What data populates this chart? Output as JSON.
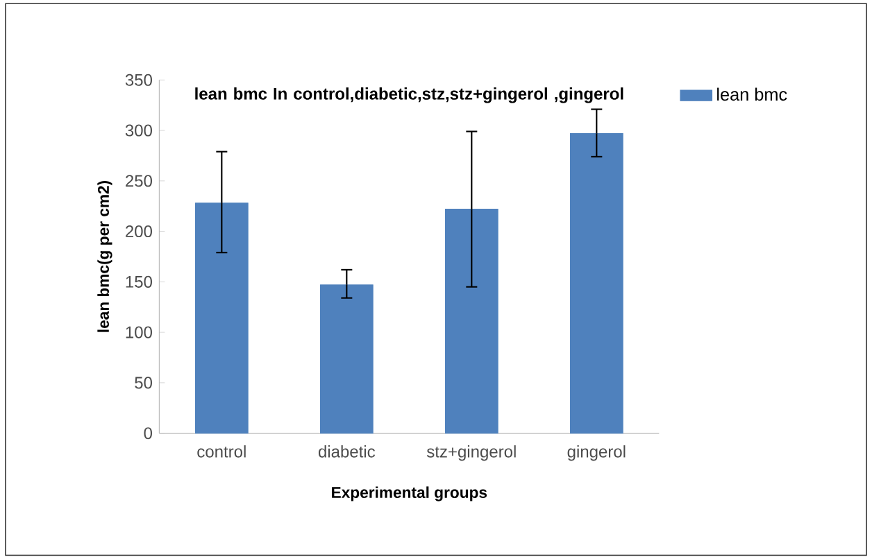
{
  "chart_data": {
    "type": "bar",
    "title": "lean bmc In control,diabetic,stz,stz+gingerol ,gingerol",
    "xlabel": "Experimental groups",
    "ylabel": "lean bmc(g per cm2)",
    "categories": [
      "control",
      "diabetic",
      "stz+gingerol",
      "gingerol"
    ],
    "series": [
      {
        "name": "lean bmc",
        "color": "#4f81bd",
        "values": [
          228,
          147,
          222,
          297
        ],
        "errors": [
          [
            179,
            279
          ],
          [
            134,
            162
          ],
          [
            145,
            299
          ],
          [
            274,
            321
          ]
        ]
      }
    ],
    "ylim": [
      0,
      350
    ],
    "yticks": [
      0,
      50,
      100,
      150,
      200,
      250,
      300,
      350
    ],
    "grid": false,
    "legend": "top right"
  }
}
